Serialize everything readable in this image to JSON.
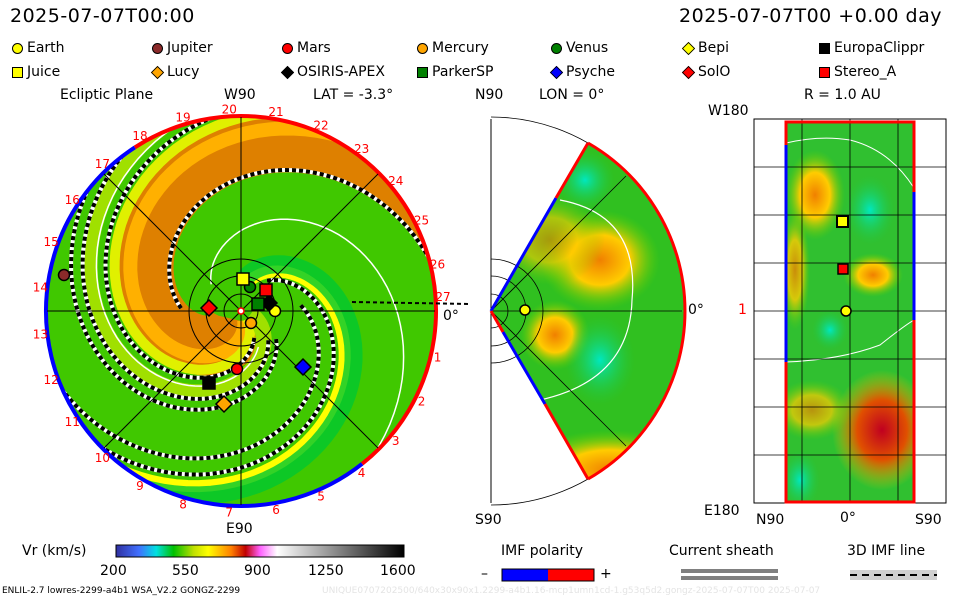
{
  "header": {
    "date_left": "2025-07-07T00:00",
    "date_right": "2025-07-07T00 +0.00 day"
  },
  "legend": [
    {
      "name": "Earth",
      "shape": "circle",
      "color": "#ffff00"
    },
    {
      "name": "Jupiter",
      "shape": "circle",
      "color": "#8b2a2a"
    },
    {
      "name": "Mars",
      "shape": "circle",
      "color": "#ff0000"
    },
    {
      "name": "Mercury",
      "shape": "circle",
      "color": "#ffa500"
    },
    {
      "name": "Venus",
      "shape": "circle",
      "color": "#008000"
    },
    {
      "name": "Bepi",
      "shape": "diamond",
      "color": "#ffff00"
    },
    {
      "name": "EuropaClippr",
      "shape": "square",
      "color": "#000000"
    },
    {
      "name": "Juice",
      "shape": "square",
      "color": "#ffff00"
    },
    {
      "name": "Lucy",
      "shape": "diamond",
      "color": "#ffa500"
    },
    {
      "name": "OSIRIS-APEX",
      "shape": "diamond",
      "color": "#000000"
    },
    {
      "name": "ParkerSP",
      "shape": "square",
      "color": "#008000"
    },
    {
      "name": "Psyche",
      "shape": "diamond",
      "color": "#0000ff"
    },
    {
      "name": "SolO",
      "shape": "diamond",
      "color": "#ff0000"
    },
    {
      "name": "Stereo_A",
      "shape": "square",
      "color": "#ff0000"
    }
  ],
  "ecliptic": {
    "title": "Ecliptic Plane",
    "top_label": "W90",
    "lat": "LAT = -3.3°",
    "bottom_label": "E90",
    "zero_label": "0°",
    "rotation_labels": [
      "1",
      "2",
      "3",
      "4",
      "5",
      "6",
      "7",
      "8",
      "9",
      "10",
      "11",
      "12",
      "13",
      "14",
      "15",
      "16",
      "17",
      "18",
      "19",
      "20",
      "21",
      "22",
      "23",
      "24",
      "25",
      "26",
      "27"
    ]
  },
  "meridional": {
    "top_label": "N90",
    "lon": "LON = 0°",
    "bottom_label": "S90",
    "zero_label": "0°"
  },
  "radial": {
    "title": "R = 1.0 AU",
    "top_label": "W180",
    "bottom_label": "E180",
    "left_label": "N90",
    "center_label": "0°",
    "right_label": "S90",
    "tick_label": "1"
  },
  "colorbar": {
    "title": "Vr (km/s)",
    "ticks": [
      "200",
      "550",
      "900",
      "1250",
      "1600"
    ]
  },
  "imf": {
    "title": "IMF polarity",
    "minus": "–",
    "plus": "+",
    "neg_color": "#0000ff",
    "pos_color": "#ff0000"
  },
  "sheath": {
    "title": "Current sheath"
  },
  "imfline": {
    "title": "3D IMF line"
  },
  "footer": {
    "left": "ENLIL-2.7 lowres-2299-a4b1 WSA_V2.2 GONGZ-2299",
    "right": "UNIQUE0707202500/640x30x90x1.2299-a4b1.16-mcp1umn1cd-1.g53q5d2.gongz-2025-07-07T00   2025-07-07"
  }
}
